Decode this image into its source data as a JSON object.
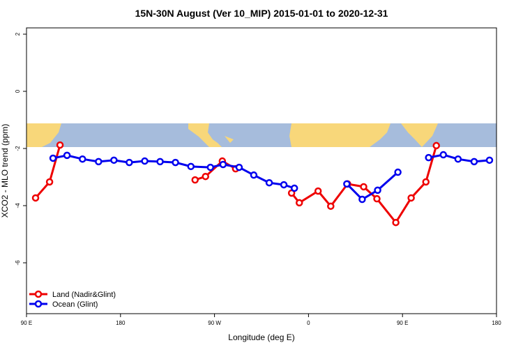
{
  "chart_data": {
    "type": "line",
    "title": "15N-30N August (Ver 10_MIP)   2015-01-01 to 2020-12-31",
    "xlabel": "Longitude (deg E)",
    "ylabel": "XCO2 - MLO trend (ppm)",
    "xlim": [
      90,
      540
    ],
    "ylim": [
      -7.78,
      2.22
    ],
    "xticks": [
      {
        "value": 90,
        "label": "90 E"
      },
      180,
      {
        "value": 270,
        "label": "90 W"
      },
      {
        "value": 360,
        "label": "0"
      },
      {
        "value": 450,
        "label": "90 E"
      },
      {
        "value": 540,
        "label": "180"
      }
    ],
    "yticks": [
      2,
      0,
      -2,
      -4,
      -6
    ],
    "legend": "bottom-left",
    "series": [
      {
        "name": "Land (Nadir&Glint)",
        "color": "#ee0000",
        "x": [
          98.7,
          112.1,
          122.1,
          null,
          251.4,
          261.4,
          277.5,
          290.2,
          null,
          343.8,
          351.2,
          369.2,
          381.3,
          397.4,
          412.8,
          425.5,
          443.6,
          458.3,
          472.4,
          482.4
        ],
        "values": [
          -3.73,
          -3.17,
          -1.88,
          null,
          -3.1,
          -2.98,
          -2.44,
          -2.71,
          null,
          -3.56,
          -3.9,
          -3.49,
          -4.02,
          -3.24,
          -3.34,
          -3.76,
          -4.59,
          -3.73,
          -3.17,
          -1.9
        ]
      },
      {
        "name": "Ocean (Glint)",
        "color": "#0000ee",
        "x": [
          115.4,
          128.8,
          143.6,
          159.0,
          173.7,
          188.4,
          203.2,
          217.9,
          232.6,
          247.4,
          266.1,
          278.2,
          293.6,
          307.6,
          322.4,
          336.4,
          346.5,
          null,
          396.7,
          411.4,
          426.2,
          445.6,
          null,
          475.0,
          489.1,
          503.2,
          518.6,
          533.3
        ],
        "values": [
          -2.34,
          -2.24,
          -2.37,
          -2.46,
          -2.41,
          -2.49,
          -2.44,
          -2.46,
          -2.49,
          -2.63,
          -2.66,
          -2.56,
          -2.66,
          -2.93,
          -3.2,
          -3.27,
          -3.39,
          null,
          -3.24,
          -3.78,
          -3.46,
          -2.83,
          null,
          -2.32,
          -2.22,
          -2.37,
          -2.46,
          -2.41
        ]
      }
    ]
  }
}
